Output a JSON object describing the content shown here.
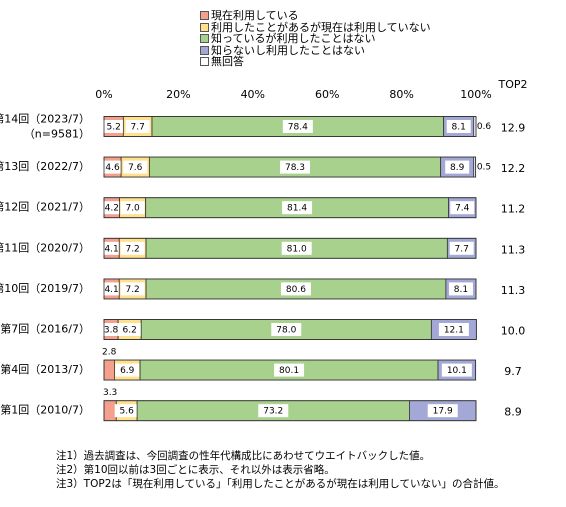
{
  "chart_data": {
    "type": "bar",
    "orientation": "horizontal",
    "stacked": true,
    "xlim": [
      0,
      100
    ],
    "x_ticks": [
      "0%",
      "20%",
      "40%",
      "60%",
      "80%",
      "100%"
    ],
    "grid": false,
    "legend_position": "top",
    "top2_header": "TOP2",
    "categories": [
      {
        "label": "第14回（2023/7）",
        "sublabel": "（n=9581）"
      },
      {
        "label": "第13回（2022/7）",
        "sublabel": ""
      },
      {
        "label": "第12回（2021/7）",
        "sublabel": ""
      },
      {
        "label": "第11回（2020/7）",
        "sublabel": ""
      },
      {
        "label": "第10回（2019/7）",
        "sublabel": ""
      },
      {
        "label": "第7回（2016/7）",
        "sublabel": ""
      },
      {
        "label": "第4回（2013/7）",
        "sublabel": ""
      },
      {
        "label": "第1回（2010/7）",
        "sublabel": ""
      }
    ],
    "series": [
      {
        "name": "現在利用している",
        "color": "#f4a08c",
        "values": [
          5.2,
          4.6,
          4.2,
          4.1,
          4.1,
          3.8,
          2.8,
          3.3
        ],
        "labels": [
          "5.2",
          "4.6",
          "4.2",
          "4.1",
          "4.1",
          "3.8",
          "2.8",
          "3.3"
        ]
      },
      {
        "name": "利用したことがあるが現在は利用していない",
        "color": "#ffe08c",
        "values": [
          7.7,
          7.6,
          7.0,
          7.2,
          7.2,
          6.2,
          6.9,
          5.6
        ],
        "labels": [
          "7.7",
          "7.6",
          "7.0",
          "7.2",
          "7.2",
          "6.2",
          "6.9",
          "5.6"
        ]
      },
      {
        "name": "知っているが利用したことはない",
        "color": "#a8d18d",
        "values": [
          78.4,
          78.3,
          81.4,
          81.0,
          80.6,
          78.0,
          80.1,
          73.2
        ],
        "labels": [
          "78.4",
          "78.3",
          "81.4",
          "81.0",
          "80.6",
          "78.0",
          "80.1",
          "73.2"
        ]
      },
      {
        "name": "知らないし利用したことはない",
        "color": "#a3a8d6",
        "values": [
          8.1,
          8.9,
          7.4,
          7.7,
          8.1,
          12.1,
          10.1,
          17.9
        ],
        "labels": [
          "8.1",
          "8.9",
          "7.4",
          "7.7",
          "8.1",
          "12.1",
          "10.1",
          "17.9"
        ]
      },
      {
        "name": "無回答",
        "color": "#ffffff",
        "values": [
          0.6,
          0.5,
          0,
          0,
          0,
          0,
          0,
          0
        ],
        "labels": [
          "0.6",
          "0.5",
          "",
          "",
          "",
          "",
          "",
          ""
        ]
      }
    ],
    "top2": [
      "12.9",
      "12.2",
      "11.2",
      "11.3",
      "11.3",
      "10.0",
      "9.7",
      "8.9"
    ]
  },
  "notes": [
    "注1）過去調査は、今回調査の性年代構成比にあわせてウエイトバックした値。",
    "注2）第10回以前は3回ごとに表示、それ以外は表示省略。",
    "注3）TOP2は「現在利用している」「利用したことがあるが現在は利用していない」の合計値。"
  ]
}
